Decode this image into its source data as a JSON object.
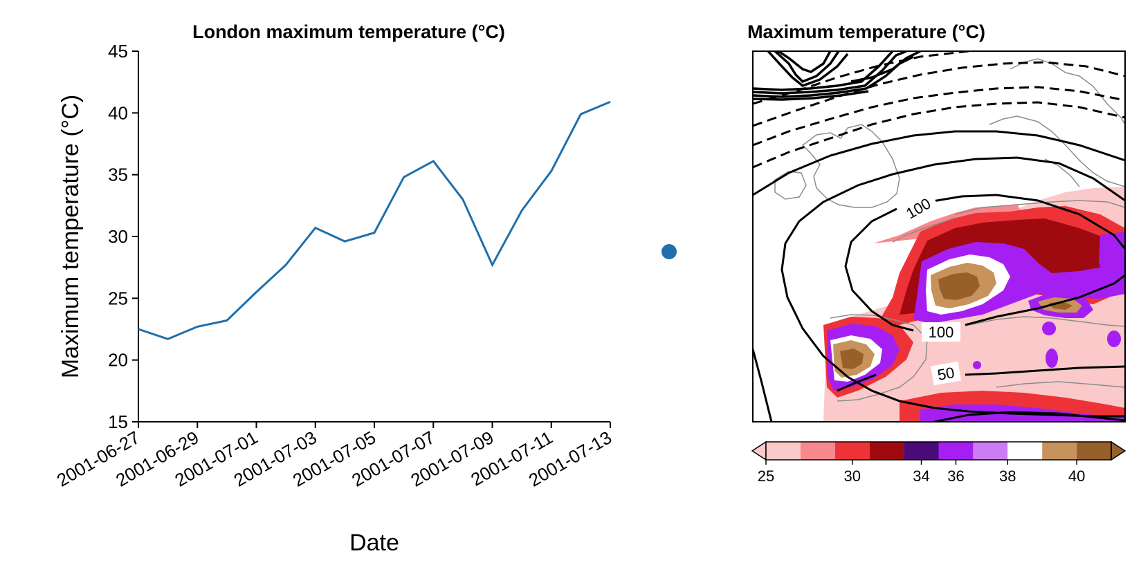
{
  "chart_data": [
    {
      "type": "line",
      "title": "London maximum temperature (°C)",
      "xlabel": "Date",
      "ylabel": "Maximum temperature (°C)",
      "ylim": [
        15,
        45
      ],
      "xlim": [
        "2001-06-27",
        "2001-07-13"
      ],
      "yticks": [
        15,
        20,
        25,
        30,
        35,
        40,
        45
      ],
      "xticks": [
        "2001-06-27",
        "2001-06-29",
        "2001-07-01",
        "2001-07-03",
        "2001-07-05",
        "2001-07-07",
        "2001-07-09",
        "2001-07-11",
        "2001-07-13"
      ],
      "grid": false,
      "series": [
        {
          "color": "#1f6fab",
          "x": [
            "2001-06-27",
            "2001-06-28",
            "2001-06-29",
            "2001-06-30",
            "2001-07-01",
            "2001-07-02",
            "2001-07-03",
            "2001-07-04",
            "2001-07-05",
            "2001-07-06",
            "2001-07-07",
            "2001-07-08",
            "2001-07-09",
            "2001-07-10",
            "2001-07-11",
            "2001-07-12",
            "2001-07-13"
          ],
          "values": [
            22.5,
            21.7,
            22.7,
            23.2,
            25.5,
            27.7,
            30.7,
            29.6,
            30.3,
            34.8,
            36.1,
            33.0,
            27.7,
            32.1,
            35.3,
            39.9,
            40.9
          ]
        }
      ]
    },
    {
      "type": "heatmap",
      "title": "Maximum temperature (°C)",
      "colorbar": {
        "ticks": [
          25,
          30,
          34,
          36,
          38,
          40
        ],
        "levels": [
          25,
          27,
          29,
          31,
          33,
          35,
          37,
          38,
          39,
          40
        ],
        "colors": [
          "#fbc9c9",
          "#f7888b",
          "#ee3338",
          "#9e0a10",
          "#4a0a7a",
          "#a51ff2",
          "#cc7cf5",
          "#ffffff",
          "#c8925d",
          "#97602b"
        ],
        "extend": "both"
      },
      "contour_labels": [
        "100",
        "100",
        "50"
      ],
      "marker_color": "#1f6fab"
    }
  ]
}
